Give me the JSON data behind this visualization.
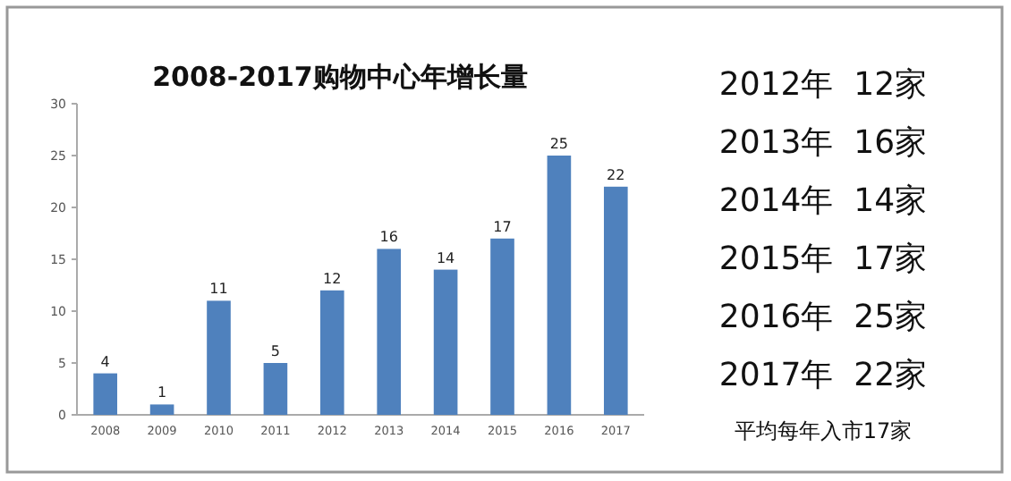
{
  "chart_data": {
    "type": "bar",
    "title": "2008-2017购物中心年增长量",
    "categories": [
      "2008",
      "2009",
      "2010",
      "2011",
      "2012",
      "2013",
      "2014",
      "2015",
      "2016",
      "2017"
    ],
    "values": [
      4,
      1,
      11,
      5,
      12,
      16,
      14,
      17,
      25,
      22
    ],
    "color": "#4f81bd",
    "ylim": [
      0,
      30
    ],
    "yticks": [
      0,
      5,
      10,
      15,
      20,
      25,
      30
    ],
    "data_labels": true,
    "annotations": [
      "2012年  12家",
      "2013年  16家",
      "2014年  14家",
      "2015年  17家",
      "2016年  25家",
      "2017年  22家",
      "平均每年入市17家"
    ]
  }
}
